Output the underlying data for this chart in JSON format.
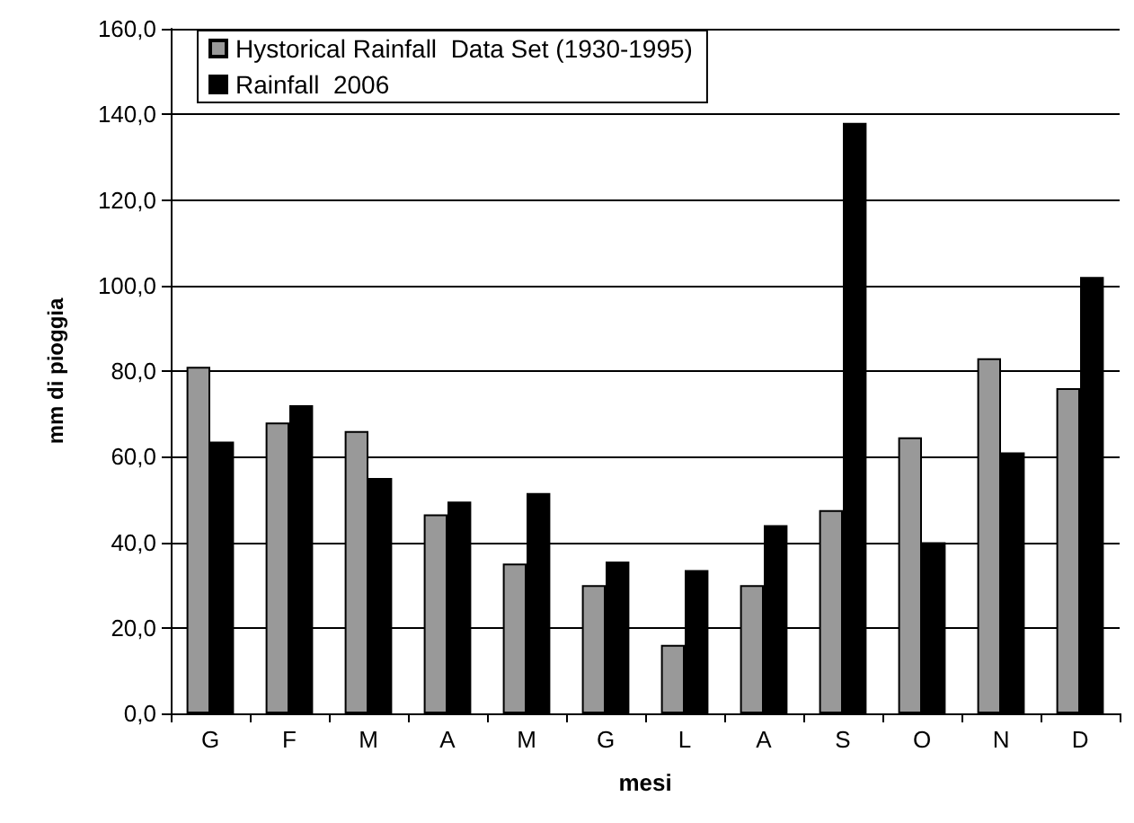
{
  "chart_data": {
    "type": "bar",
    "xlabel": "mesi",
    "ylabel": "mm di pioggia",
    "categories": [
      "G",
      "F",
      "M",
      "A",
      "M",
      "G",
      "L",
      "A",
      "S",
      "O",
      "N",
      "D"
    ],
    "series": [
      {
        "name": "Hystorical Rainfall  Data Set (1930-1995)",
        "color": "#999999",
        "values": [
          81,
          68,
          66,
          46.5,
          35,
          30,
          16,
          30,
          47.5,
          64.5,
          83,
          76
        ]
      },
      {
        "name": "Rainfall  2006",
        "color": "#000000",
        "values": [
          63.5,
          72,
          55,
          49.5,
          51.5,
          35.5,
          33.5,
          44,
          138,
          40,
          61,
          102
        ]
      }
    ],
    "ylim": [
      0,
      160
    ],
    "yticks": [
      {
        "value": 0,
        "label": "0,0"
      },
      {
        "value": 20,
        "label": "20,0"
      },
      {
        "value": 40,
        "label": "40,0"
      },
      {
        "value": 60,
        "label": "60,0"
      },
      {
        "value": 80,
        "label": "80,0"
      },
      {
        "value": 100,
        "label": "100,0"
      },
      {
        "value": 120,
        "label": "120,0"
      },
      {
        "value": 140,
        "label": "140,0"
      },
      {
        "value": 160,
        "label": "160,0"
      }
    ],
    "grid": "y",
    "legend": "top left"
  }
}
